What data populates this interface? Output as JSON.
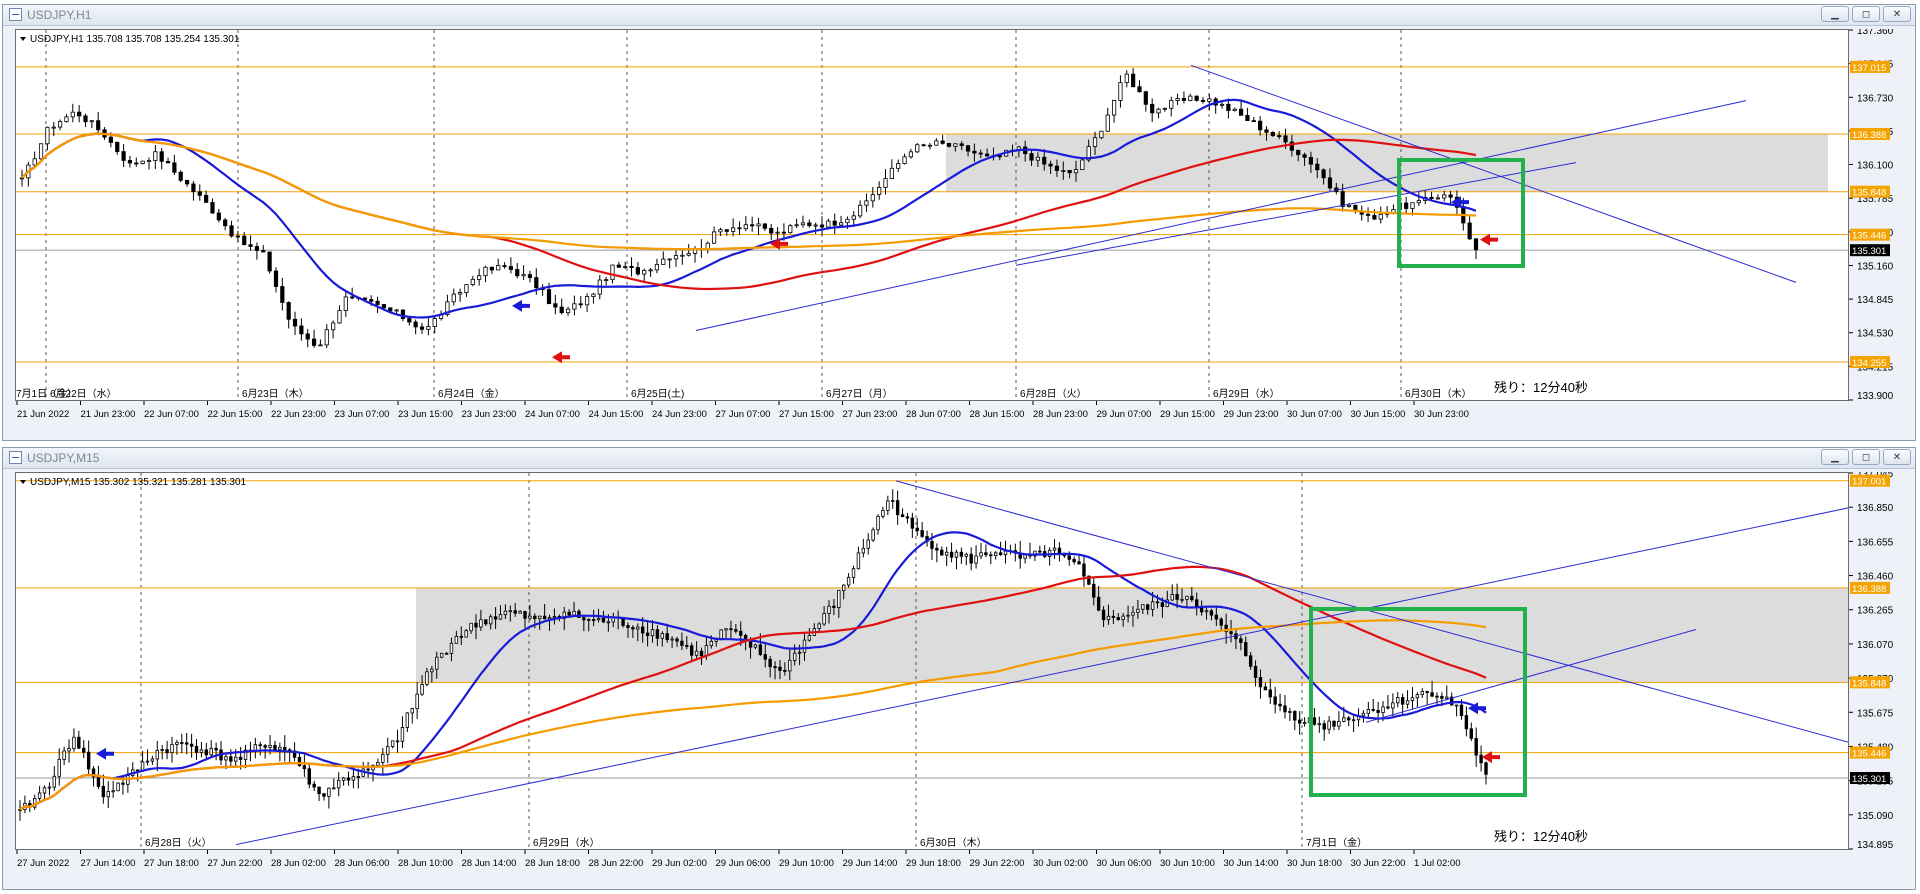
{
  "top": {
    "window_title": "USDJPY,H1",
    "info": "USDJPY,H1  135.708 135.708 135.254 135.301",
    "remaining": "残り：12分40秒",
    "win_buttons": [
      "▁",
      "◻",
      "✕"
    ],
    "price_labels": [
      "137.360",
      "137.045",
      "136.730",
      "136.415",
      "136.100",
      "135.785",
      "135.470",
      "135.160",
      "134.845",
      "134.530",
      "134.215",
      "133.900"
    ],
    "hlines": [
      {
        "label": "137.015",
        "color": "#f5a300"
      },
      {
        "label": "136.388",
        "color": "#f5a300"
      },
      {
        "label": "135.848",
        "color": "#f5a300"
      },
      {
        "label": "135.446",
        "color": "#f5a300"
      },
      {
        "label": "134.255",
        "color": "#f5a300"
      }
    ],
    "current": "135.301",
    "date_labels": [
      "6月22日（水）",
      "6月23日（木）",
      "6月24日（金）",
      "6月25日(土)",
      "6月27日（月）",
      "6月28日（火）",
      "6月29日（水）",
      "6月30日（木）",
      "7月1日（金）"
    ],
    "time_labels": [
      "21 Jun 2022",
      "21 Jun 23:00",
      "22 Jun 07:00",
      "22 Jun 15:00",
      "22 Jun 23:00",
      "23 Jun 07:00",
      "23 Jun 15:00",
      "23 Jun 23:00",
      "24 Jun 07:00",
      "24 Jun 15:00",
      "24 Jun 23:00",
      "27 Jun 07:00",
      "27 Jun 15:00",
      "27 Jun 23:00",
      "28 Jun 07:00",
      "28 Jun 15:00",
      "28 Jun 23:00",
      "29 Jun 07:00",
      "29 Jun 15:00",
      "29 Jun 23:00",
      "30 Jun 07:00",
      "30 Jun 15:00",
      "30 Jun 23:00"
    ]
  },
  "bottom": {
    "window_title": "USDJPY,M15",
    "info": "USDJPY,M15  135.302 135.321 135.281 135.301",
    "remaining": "残り：12分40秒",
    "win_buttons": [
      "▁",
      "◻",
      "✕"
    ],
    "price_labels": [
      "137.045",
      "136.850",
      "136.655",
      "136.460",
      "136.265",
      "136.070",
      "135.870",
      "135.675",
      "135.480",
      "135.285",
      "135.090",
      "134.895"
    ],
    "hlines": [
      {
        "label": "137.001",
        "color": "#f5a300"
      },
      {
        "label": "136.388",
        "color": "#f5a300"
      },
      {
        "label": "135.848",
        "color": "#f5a300"
      },
      {
        "label": "135.446",
        "color": "#f5a300"
      }
    ],
    "current": "135.301",
    "date_labels": [
      "6月28日（火）",
      "6月29日（水）",
      "6月30日（木）",
      "7月1日（金）"
    ],
    "time_labels": [
      "27 Jun 2022",
      "27 Jun 14:00",
      "27 Jun 18:00",
      "27 Jun 22:00",
      "28 Jun 02:00",
      "28 Jun 06:00",
      "28 Jun 10:00",
      "28 Jun 14:00",
      "28 Jun 18:00",
      "28 Jun 22:00",
      "29 Jun 02:00",
      "29 Jun 06:00",
      "29 Jun 10:00",
      "29 Jun 14:00",
      "29 Jun 18:00",
      "29 Jun 22:00",
      "30 Jun 02:00",
      "30 Jun 06:00",
      "30 Jun 10:00",
      "30 Jun 14:00",
      "30 Jun 18:00",
      "30 Jun 22:00",
      "1 Jul 02:00"
    ]
  },
  "chart_data": [
    {
      "type": "candlestick",
      "symbol": "USDJPY",
      "timeframe": "H1",
      "ylim": [
        133.9,
        137.36
      ],
      "hlines": [
        137.015,
        136.388,
        135.848,
        135.446,
        134.255
      ],
      "last": 135.301,
      "close_path": [
        135.95,
        136.45,
        136.6,
        136.4,
        136.1,
        136.2,
        135.95,
        135.7,
        135.4,
        135.25,
        134.6,
        134.4,
        134.85,
        134.8,
        134.7,
        134.55,
        134.85,
        135.1,
        135.15,
        135.0,
        134.7,
        134.85,
        135.15,
        135.1,
        135.25,
        135.3,
        135.5,
        135.55,
        135.45,
        135.55,
        135.55,
        135.65,
        135.95,
        136.25,
        136.3,
        136.25,
        136.15,
        136.25,
        136.1,
        136.0,
        136.4,
        136.95,
        136.6,
        136.7,
        136.72,
        136.6,
        136.45,
        136.3,
        136.1,
        135.75,
        135.6,
        135.7,
        135.75,
        135.85,
        135.3
      ]
    },
    {
      "type": "candlestick",
      "symbol": "USDJPY",
      "timeframe": "M15",
      "ylim": [
        134.895,
        137.045
      ],
      "hlines": [
        137.001,
        136.388,
        135.848,
        135.446
      ],
      "last": 135.301,
      "close_path": [
        135.1,
        135.25,
        135.55,
        135.2,
        135.3,
        135.45,
        135.5,
        135.45,
        135.4,
        135.5,
        135.45,
        135.2,
        135.3,
        135.35,
        135.55,
        135.9,
        136.1,
        136.2,
        136.25,
        136.2,
        136.25,
        136.2,
        136.2,
        136.15,
        136.1,
        136.0,
        136.15,
        136.05,
        135.9,
        136.1,
        136.3,
        136.6,
        136.9,
        136.7,
        136.6,
        136.55,
        136.6,
        136.55,
        136.6,
        136.5,
        136.2,
        136.25,
        136.3,
        136.35,
        136.2,
        136.05,
        135.75,
        135.65,
        135.6,
        135.65,
        135.7,
        135.75,
        135.8,
        135.7,
        135.3
      ]
    }
  ]
}
